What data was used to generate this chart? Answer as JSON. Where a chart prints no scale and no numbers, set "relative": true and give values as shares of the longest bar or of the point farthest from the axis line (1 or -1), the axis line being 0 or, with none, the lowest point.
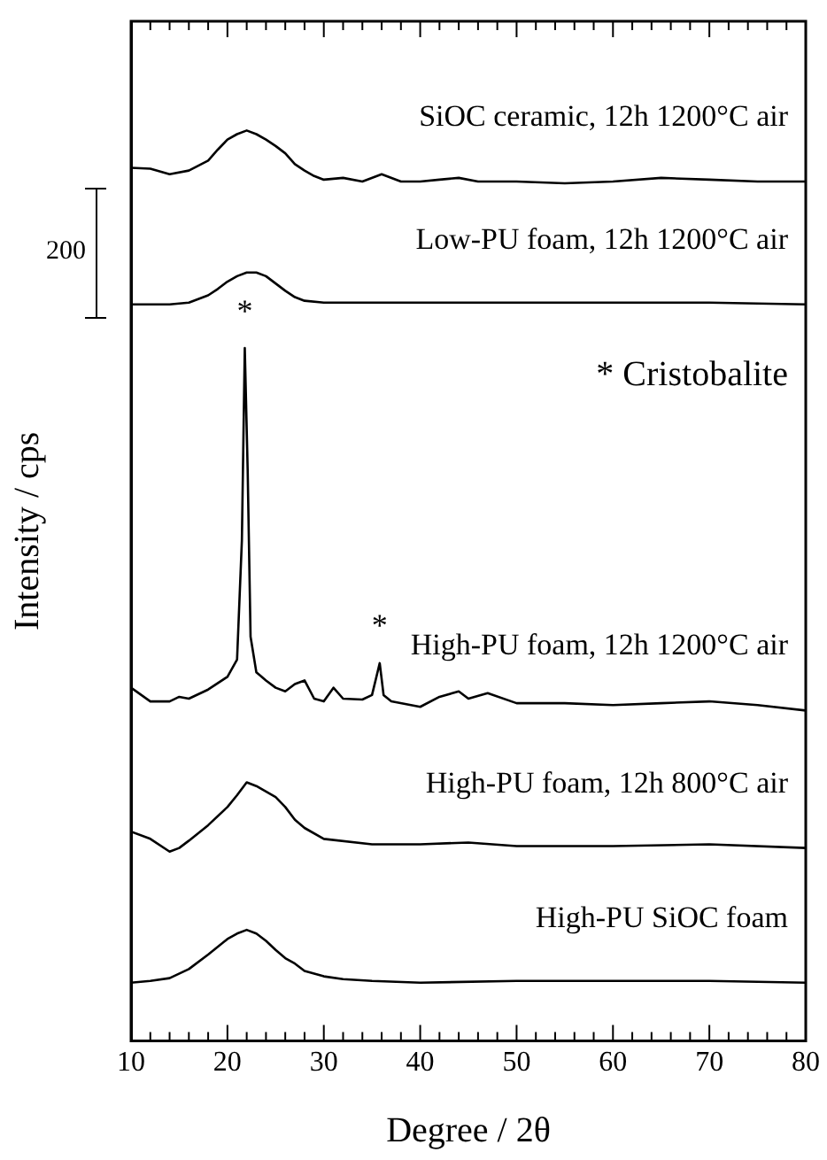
{
  "chart_data": {
    "type": "line",
    "relative": true,
    "xlabel": "Degree / 2θ",
    "ylabel": "Intensity / cps",
    "xlim": [
      10,
      80
    ],
    "xticks": [
      10,
      {
        "value": 12,
        "label": null
      },
      {
        "value": 14,
        "label": null
      },
      {
        "value": 16,
        "label": null
      },
      {
        "value": 18,
        "label": null
      },
      20,
      {
        "value": 22,
        "label": null
      },
      {
        "value": 24,
        "label": null
      },
      {
        "value": 26,
        "label": null
      },
      {
        "value": 28,
        "label": null
      },
      30,
      {
        "value": 32,
        "label": null
      },
      {
        "value": 34,
        "label": null
      },
      {
        "value": 36,
        "label": null
      },
      {
        "value": 38,
        "label": null
      },
      40,
      {
        "value": 42,
        "label": null
      },
      {
        "value": 44,
        "label": null
      },
      {
        "value": 46,
        "label": null
      },
      {
        "value": 48,
        "label": null
      },
      50,
      {
        "value": 52,
        "label": null
      },
      {
        "value": 54,
        "label": null
      },
      {
        "value": 56,
        "label": null
      },
      {
        "value": 58,
        "label": null
      },
      60,
      {
        "value": 62,
        "label": null
      },
      {
        "value": 64,
        "label": null
      },
      {
        "value": 66,
        "label": null
      },
      {
        "value": 68,
        "label": null
      },
      70,
      {
        "value": 72,
        "label": null
      },
      {
        "value": 74,
        "label": null
      },
      {
        "value": 76,
        "label": null
      },
      {
        "value": 78,
        "label": null
      },
      80
    ],
    "grid": false,
    "legend": false,
    "marker": "none",
    "line_style": "solid",
    "annotations": [
      "* Cristobalite",
      "200",
      {
        "text": "*",
        "x": 21.8,
        "y": 0.761
      },
      {
        "text": "*",
        "x": 35.8,
        "y": 0.415
      }
    ],
    "series": [
      {
        "name": "SiOC ceramic, 12h 1200°C air",
        "color": "#000000",
        "x": [
          10,
          12,
          14,
          16,
          18,
          19,
          20,
          21,
          22,
          23,
          24,
          25,
          26,
          27,
          28,
          29,
          30,
          32,
          34,
          36,
          38,
          40,
          42,
          44,
          46,
          50,
          55,
          60,
          65,
          70,
          75,
          80
        ],
        "values": [
          0.959,
          0.958,
          0.952,
          0.956,
          0.967,
          0.979,
          0.99,
          0.996,
          1.0,
          0.996,
          0.99,
          0.983,
          0.975,
          0.963,
          0.956,
          0.95,
          0.946,
          0.948,
          0.944,
          0.952,
          0.944,
          0.944,
          0.946,
          0.948,
          0.944,
          0.944,
          0.942,
          0.944,
          0.948,
          0.946,
          0.944,
          0.944
        ]
      },
      {
        "name": "Low-PU foam, 12h 1200°C air",
        "color": "#000000",
        "x": [
          10,
          14,
          16,
          18,
          19,
          20,
          21,
          22,
          23,
          24,
          25,
          26,
          27,
          28,
          30,
          35,
          40,
          50,
          60,
          70,
          80
        ],
        "values": [
          0.809,
          0.809,
          0.811,
          0.819,
          0.826,
          0.834,
          0.84,
          0.844,
          0.844,
          0.84,
          0.832,
          0.824,
          0.817,
          0.813,
          0.811,
          0.811,
          0.811,
          0.811,
          0.811,
          0.811,
          0.809
        ]
      },
      {
        "name": "High-PU foam, 12h 1200°C air",
        "color": "#000000",
        "x": [
          10,
          12,
          14,
          15,
          16,
          18,
          20,
          21,
          21.5,
          21.8,
          22.1,
          22.4,
          23,
          24,
          25,
          26,
          27,
          28,
          29,
          30,
          31,
          32,
          34,
          35,
          35.8,
          36.2,
          37,
          40,
          42,
          44,
          45,
          47,
          50,
          55,
          60,
          65,
          70,
          75,
          80
        ],
        "values": [
          0.388,
          0.373,
          0.373,
          0.378,
          0.376,
          0.386,
          0.4,
          0.419,
          0.55,
          0.761,
          0.627,
          0.444,
          0.405,
          0.396,
          0.388,
          0.384,
          0.392,
          0.396,
          0.376,
          0.373,
          0.388,
          0.376,
          0.375,
          0.38,
          0.415,
          0.38,
          0.373,
          0.367,
          0.378,
          0.384,
          0.376,
          0.382,
          0.371,
          0.371,
          0.369,
          0.371,
          0.373,
          0.369,
          0.363
        ]
      },
      {
        "name": "High-PU foam, 12h 800°C air",
        "color": "#000000",
        "x": [
          10,
          12,
          14,
          15,
          16,
          18,
          20,
          21,
          22,
          23,
          24,
          25,
          26,
          27,
          28,
          30,
          35,
          40,
          45,
          50,
          60,
          70,
          80
        ],
        "values": [
          0.23,
          0.222,
          0.208,
          0.212,
          0.22,
          0.237,
          0.257,
          0.27,
          0.284,
          0.28,
          0.274,
          0.268,
          0.257,
          0.243,
          0.234,
          0.222,
          0.216,
          0.216,
          0.218,
          0.214,
          0.214,
          0.216,
          0.212
        ]
      },
      {
        "name": "High-PU SiOC foam",
        "color": "#000000",
        "x": [
          10,
          12,
          14,
          16,
          18,
          20,
          21,
          22,
          23,
          24,
          25,
          26,
          27,
          28,
          30,
          32,
          35,
          40,
          50,
          60,
          70,
          80
        ],
        "values": [
          0.064,
          0.066,
          0.069,
          0.079,
          0.095,
          0.112,
          0.118,
          0.122,
          0.118,
          0.11,
          0.1,
          0.091,
          0.085,
          0.077,
          0.071,
          0.068,
          0.066,
          0.064,
          0.066,
          0.066,
          0.066,
          0.064
        ]
      }
    ]
  }
}
